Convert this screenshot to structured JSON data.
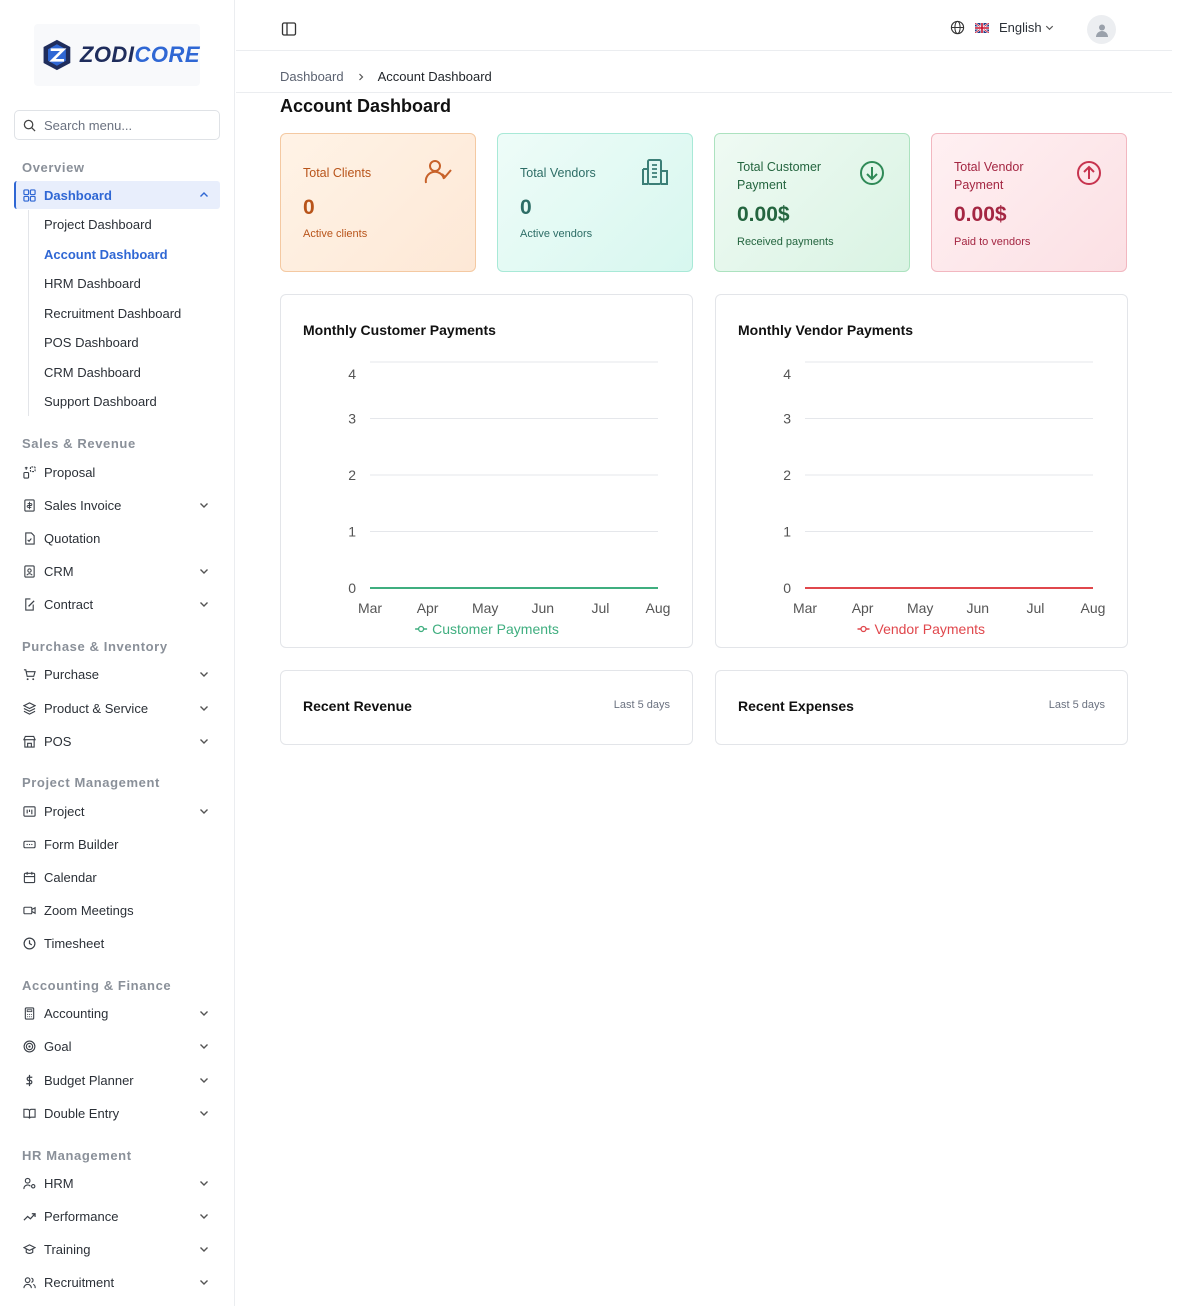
{
  "brand": {
    "part1": "ZODI",
    "part2": "CORE"
  },
  "search": {
    "placeholder": "Search menu..."
  },
  "sidebar": {
    "sections": [
      {
        "label": "Overview"
      },
      {
        "label": "Sales & Revenue"
      },
      {
        "label": "Purchase & Inventory"
      },
      {
        "label": "Project Management"
      },
      {
        "label": "Accounting & Finance"
      },
      {
        "label": "HR Management"
      }
    ],
    "dashboard_label": "Dashboard",
    "dashboard_sub": [
      "Project Dashboard",
      "Account Dashboard",
      "HRM Dashboard",
      "Recruitment Dashboard",
      "POS Dashboard",
      "CRM Dashboard",
      "Support Dashboard"
    ],
    "items": {
      "proposal": "Proposal",
      "sales_invoice": "Sales Invoice",
      "quotation": "Quotation",
      "crm": "CRM",
      "contract": "Contract",
      "purchase": "Purchase",
      "product_service": "Product & Service",
      "pos": "POS",
      "project": "Project",
      "form_builder": "Form Builder",
      "calendar": "Calendar",
      "zoom": "Zoom Meetings",
      "timesheet": "Timesheet",
      "accounting": "Accounting",
      "goal": "Goal",
      "budget": "Budget Planner",
      "double_entry": "Double Entry",
      "hrm": "HRM",
      "performance": "Performance",
      "training": "Training",
      "recruitment": "Recruitment"
    }
  },
  "header": {
    "language": "English"
  },
  "breadcrumb": {
    "root": "Dashboard",
    "current": "Account Dashboard"
  },
  "page_title": "Account Dashboard",
  "stats": {
    "clients": {
      "label": "Total Clients",
      "value": "0",
      "sub": "Active clients"
    },
    "vendors": {
      "label": "Total Vendors",
      "value": "0",
      "sub": "Active vendors"
    },
    "customer_payment": {
      "label": "Total Customer Payment",
      "value": "0.00$",
      "sub": "Received payments"
    },
    "vendor_payment": {
      "label": "Total Vendor Payment",
      "value": "0.00$",
      "sub": "Paid to vendors"
    }
  },
  "colors": {
    "accent": "#2f67d4",
    "customer_line": "#3fae7f",
    "vendor_line": "#e0474c"
  },
  "chart_data": [
    {
      "type": "line",
      "title": "Monthly Customer Payments",
      "categories": [
        "Mar",
        "Apr",
        "May",
        "Jun",
        "Jul",
        "Aug"
      ],
      "series": [
        {
          "name": "Customer Payments",
          "values": [
            0,
            0,
            0,
            0,
            0,
            0
          ]
        }
      ],
      "yticks": [
        0,
        1,
        2,
        3,
        4
      ],
      "ylim": [
        0,
        4
      ],
      "grid": true,
      "legend": "bottom"
    },
    {
      "type": "line",
      "title": "Monthly Vendor Payments",
      "categories": [
        "Mar",
        "Apr",
        "May",
        "Jun",
        "Jul",
        "Aug"
      ],
      "series": [
        {
          "name": "Vendor Payments",
          "values": [
            0,
            0,
            0,
            0,
            0,
            0
          ]
        }
      ],
      "yticks": [
        0,
        1,
        2,
        3,
        4
      ],
      "ylim": [
        0,
        4
      ],
      "grid": true,
      "legend": "bottom"
    }
  ],
  "recent": {
    "revenue": {
      "title": "Recent Revenue",
      "range": "Last 5 days"
    },
    "expenses": {
      "title": "Recent Expenses",
      "range": "Last 5 days"
    }
  }
}
